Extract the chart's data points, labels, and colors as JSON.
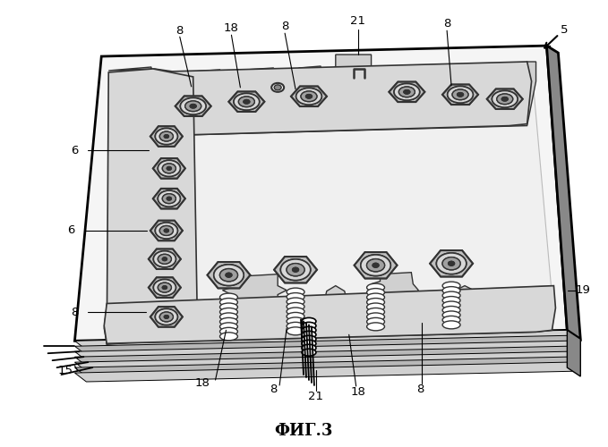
{
  "title": "ФИГ.3",
  "bg": "#ffffff",
  "lc": "#000000",
  "fig_w": 6.79,
  "fig_h": 5.0,
  "dpi": 100
}
